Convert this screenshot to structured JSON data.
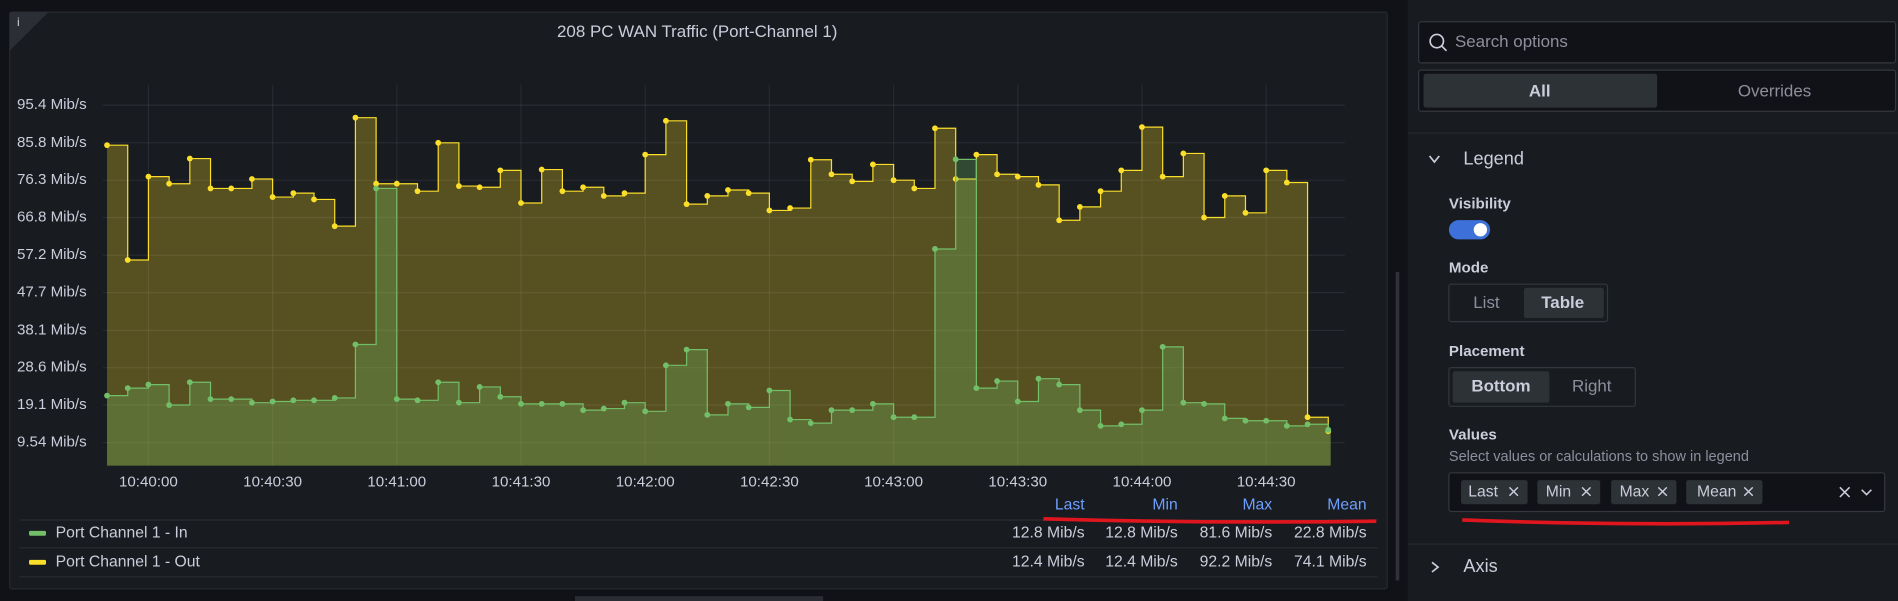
{
  "chart_data": {
    "type": "line",
    "info_icon": "i",
    "title": "208 PC WAN Traffic (Port-Channel 1)",
    "x": [
      "10:39:50",
      "10:39:55",
      "10:40:00",
      "10:40:05",
      "10:40:10",
      "10:40:15",
      "10:40:20",
      "10:40:25",
      "10:40:30",
      "10:40:35",
      "10:40:40",
      "10:40:45",
      "10:40:50",
      "10:40:55",
      "10:41:00",
      "10:41:05",
      "10:41:10",
      "10:41:15",
      "10:41:20",
      "10:41:25",
      "10:41:30",
      "10:41:35",
      "10:41:40",
      "10:41:45",
      "10:41:50",
      "10:41:55",
      "10:42:00",
      "10:42:05",
      "10:42:10",
      "10:42:15",
      "10:42:20",
      "10:42:25",
      "10:42:30",
      "10:42:35",
      "10:42:40",
      "10:42:45",
      "10:42:50",
      "10:42:55",
      "10:43:00",
      "10:43:05",
      "10:43:10",
      "10:43:15",
      "10:43:20",
      "10:43:25",
      "10:43:30",
      "10:43:35",
      "10:43:40",
      "10:43:45",
      "10:43:50",
      "10:43:55",
      "10:44:00",
      "10:44:05",
      "10:44:10",
      "10:44:15",
      "10:44:20",
      "10:44:25",
      "10:44:30",
      "10:44:35",
      "10:44:40",
      "10:44:45"
    ],
    "series": [
      {
        "name": "Port Channel 1 - In",
        "color": "#73bf69",
        "values": [
          21.5,
          23.4,
          24.3,
          19.1,
          24.9,
          20.6,
          20.6,
          19.7,
          20,
          20.3,
          20.3,
          20.9,
          34.5,
          74.2,
          20.6,
          20.3,
          24.9,
          19.7,
          23.7,
          21.2,
          19.4,
          19.4,
          19.4,
          17.8,
          18.2,
          19.7,
          17.5,
          29.2,
          33.2,
          16.6,
          19.4,
          18.5,
          22.8,
          15.4,
          14.5,
          17.8,
          17.8,
          19.4,
          16,
          16,
          58.8,
          81.6,
          23.4,
          25.2,
          20,
          25.8,
          24.3,
          17.8,
          13.8,
          14.2,
          17.8,
          33.9,
          19.7,
          19.4,
          15.7,
          15.1,
          15.1,
          13.8,
          14.2,
          12.8
        ],
        "stats": [
          12.8,
          12.8,
          81.6,
          22.8
        ],
        "stats_labels": [
          "12.8 Mib/s",
          "12.8 Mib/s",
          "81.6 Mib/s",
          "22.8 Mib/s"
        ]
      },
      {
        "name": "Port Channel 1 - Out",
        "color": "#fade2a",
        "values": [
          85.2,
          56,
          77.2,
          75.4,
          81.8,
          74.2,
          74.2,
          76.6,
          72,
          73,
          71.4,
          64.6,
          92.2,
          75.4,
          75.4,
          73.5,
          85.8,
          74.8,
          74.5,
          78.8,
          70.5,
          79,
          73.5,
          74.5,
          72.3,
          73,
          82.8,
          91.4,
          70.2,
          72.3,
          73.8,
          73,
          68.6,
          69.2,
          81.5,
          77.8,
          76,
          80.3,
          76.3,
          74.2,
          89.5,
          76.6,
          82.8,
          77.8,
          77.2,
          75.1,
          66.1,
          69.5,
          73.5,
          78.8,
          89.8,
          77.2,
          83.1,
          66.8,
          72.3,
          68,
          78.8,
          75.7,
          16,
          12.4
        ],
        "stats": [
          12.4,
          12.4,
          92.2,
          74.1
        ],
        "stats_labels": [
          "12.4 Mib/s",
          "12.4 Mib/s",
          "92.2 Mib/s",
          "74.1 Mib/s"
        ]
      }
    ],
    "legend_columns": [
      "Last",
      "Min",
      "Max",
      "Mean"
    ],
    "xlim": [
      "10:39:49",
      "10:44:49"
    ],
    "xticks": [
      "10:40:00",
      "10:40:30",
      "10:41:00",
      "10:41:30",
      "10:42:00",
      "10:42:30",
      "10:43:00",
      "10:43:30",
      "10:44:00",
      "10:44:30"
    ],
    "ylim": [
      3.7,
      100.6
    ],
    "yticks": [
      {
        "value": 9.54,
        "label": "9.54 Mib/s"
      },
      {
        "value": 19.1,
        "label": "19.1 Mib/s"
      },
      {
        "value": 28.6,
        "label": "28.6 Mib/s"
      },
      {
        "value": 38.1,
        "label": "38.1 Mib/s"
      },
      {
        "value": 47.7,
        "label": "47.7 Mib/s"
      },
      {
        "value": 57.2,
        "label": "57.2 Mib/s"
      },
      {
        "value": 66.8,
        "label": "66.8 Mib/s"
      },
      {
        "value": 76.3,
        "label": "76.3 Mib/s"
      },
      {
        "value": 85.8,
        "label": "85.8 Mib/s"
      },
      {
        "value": 95.4,
        "label": "95.4 Mib/s"
      }
    ],
    "grid": true,
    "step": true
  },
  "options": {
    "search": "Search options",
    "tabs": [
      "All",
      "Overrides"
    ],
    "legend": {
      "title": "Legend",
      "visibility": "Visibility",
      "mode": {
        "label": "Mode",
        "choices": [
          "List",
          "Table"
        ]
      },
      "placement": {
        "label": "Placement",
        "choices": [
          "Bottom",
          "Right"
        ]
      },
      "values": {
        "label": "Values",
        "description": "Select values or calculations to show in legend",
        "chips": [
          "Last",
          "Min",
          "Max",
          "Mean"
        ]
      }
    },
    "axis": {
      "title": "Axis"
    }
  }
}
